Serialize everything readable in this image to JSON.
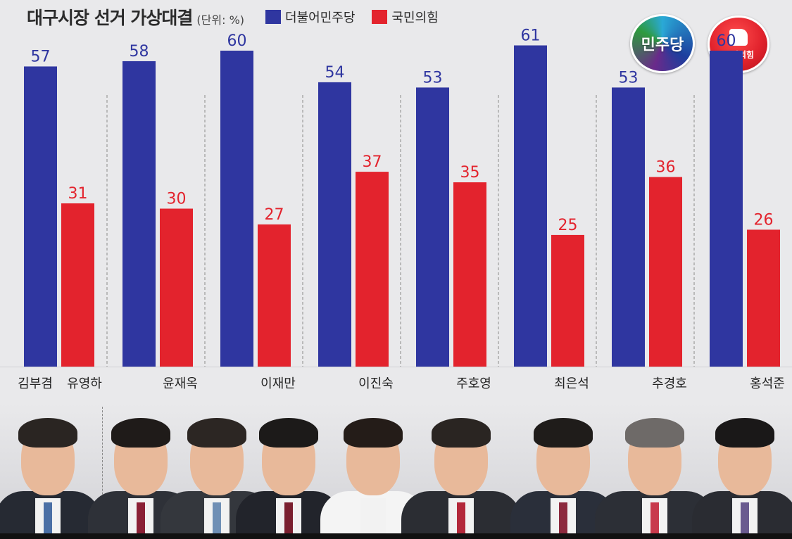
{
  "title": "대구시장 선거 가상대결",
  "unit": "(단위: %)",
  "legend": [
    {
      "label": "더불어민주당",
      "color": "#2f36a0"
    },
    {
      "label": "국민의힘",
      "color": "#e3232d"
    }
  ],
  "logos": {
    "dem": "민주당",
    "ppp": "국민의힘"
  },
  "chart_data": {
    "type": "bar",
    "ylim": [
      0,
      70
    ],
    "grid": false,
    "series": [
      {
        "name": "더불어민주당",
        "color": "#2f36a0",
        "values": [
          57,
          58,
          60,
          54,
          53,
          61,
          53,
          60
        ]
      },
      {
        "name": "국민의힘",
        "color": "#e3232d",
        "values": [
          31,
          30,
          27,
          37,
          35,
          25,
          36,
          26
        ]
      }
    ],
    "democratic_candidate": "김부겸",
    "categories": [
      "유영하",
      "윤재옥",
      "이재만",
      "이진숙",
      "주호영",
      "최은석",
      "추경호",
      "홍석준"
    ]
  },
  "icons": [
    "democratic-party-logo-icon",
    "people-power-party-logo-icon",
    "candidate-photo-icon"
  ]
}
